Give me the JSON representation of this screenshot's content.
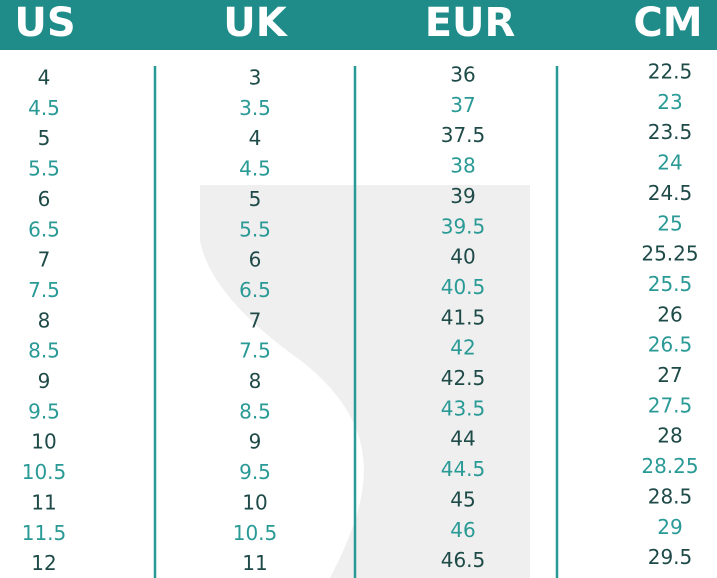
{
  "table": {
    "headers": [
      "US",
      "UK",
      "EUR",
      "CM"
    ],
    "rows": [
      [
        "4",
        "3",
        "36",
        "22.5"
      ],
      [
        "4.5",
        "3.5",
        "37",
        "23"
      ],
      [
        "5",
        "4",
        "37.5",
        "23.5"
      ],
      [
        "5.5",
        "4.5",
        "38",
        "24"
      ],
      [
        "6",
        "5",
        "39",
        "24.5"
      ],
      [
        "6.5",
        "5.5",
        "39.5",
        "25"
      ],
      [
        "7",
        "6",
        "40",
        "25.25"
      ],
      [
        "7.5",
        "6.5",
        "40.5",
        "25.5"
      ],
      [
        "8",
        "7",
        "41.5",
        "26"
      ],
      [
        "8.5",
        "7.5",
        "42",
        "26.5"
      ],
      [
        "9",
        "8",
        "42.5",
        "27"
      ],
      [
        "9.5",
        "8.5",
        "43.5",
        "27.5"
      ],
      [
        "10",
        "9",
        "44",
        "28"
      ],
      [
        "10.5",
        "9.5",
        "44.5",
        "28.25"
      ],
      [
        "11",
        "10",
        "45",
        "28.5"
      ],
      [
        "11.5",
        "10.5",
        "46",
        "29"
      ],
      [
        "12",
        "11",
        "46.5",
        "29.5"
      ]
    ]
  }
}
